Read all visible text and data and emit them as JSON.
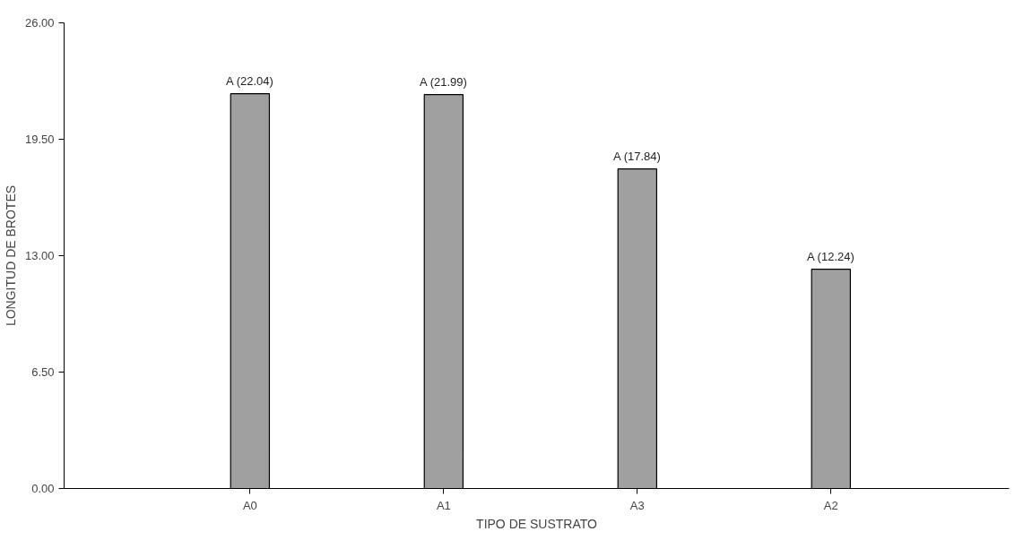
{
  "chart_data": {
    "type": "bar",
    "xlabel": "TIPO DE SUSTRATO",
    "ylabel": "LONGITUD DE BROTES",
    "categories": [
      "A0",
      "A1",
      "A3",
      "A2"
    ],
    "values": [
      22.04,
      21.99,
      17.84,
      12.24
    ],
    "value_labels": [
      "A (22.04)",
      "A (21.99)",
      "A (17.84)",
      "A (12.24)"
    ],
    "color": "#a0a0a0",
    "ylim": [
      0,
      26
    ],
    "yticks": [
      {
        "value": 0,
        "label": "0.00"
      },
      {
        "value": 6.5,
        "label": "6.50"
      },
      {
        "value": 13,
        "label": "13.00"
      },
      {
        "value": 19.5,
        "label": "19.50"
      },
      {
        "value": 26,
        "label": "26.00"
      }
    ],
    "grid": false
  }
}
